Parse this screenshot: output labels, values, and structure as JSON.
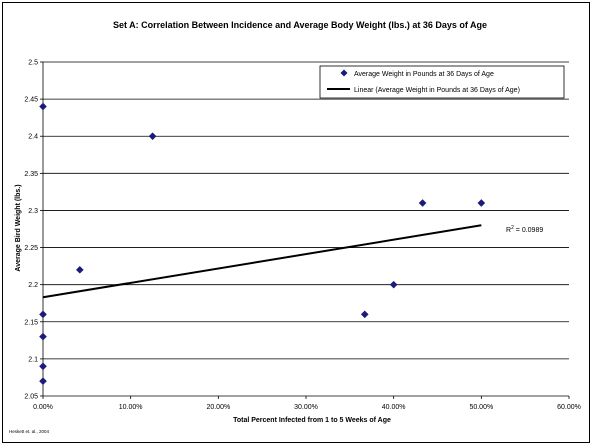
{
  "chart_data": {
    "type": "scatter",
    "title": "Set A:  Correlation Between Incidence and Average Body Weight (lbs.) at 36 Days of Age",
    "xlabel": "Total Percent Infected from 1 to 5 Weeks of Age",
    "ylabel": "Average Bird Weight (lbs.)",
    "xlim": [
      0,
      0.6
    ],
    "ylim": [
      2.05,
      2.5
    ],
    "x_ticks": [
      0,
      0.1,
      0.2,
      0.3,
      0.4,
      0.5,
      0.6
    ],
    "x_tick_labels": [
      "0.00%",
      "10.00%",
      "20.00%",
      "30.00%",
      "40.00%",
      "50.00%",
      "60.00%"
    ],
    "y_ticks": [
      2.05,
      2.1,
      2.15,
      2.2,
      2.25,
      2.3,
      2.35,
      2.4,
      2.45,
      2.5
    ],
    "y_tick_labels": [
      "2.05",
      "2.1",
      "2.15",
      "2.2",
      "2.25",
      "2.3",
      "2.35",
      "2.4",
      "2.45",
      "2.5"
    ],
    "grid": "horizontal",
    "legend_position": "top-right",
    "series": [
      {
        "name": "Average Weight in Pounds at 36 Days of Age",
        "marker": "diamond",
        "color": "#1c1a7a",
        "points": [
          {
            "x": 0.0,
            "y": 2.44
          },
          {
            "x": 0.0,
            "y": 2.16
          },
          {
            "x": 0.0,
            "y": 2.13
          },
          {
            "x": 0.0,
            "y": 2.09
          },
          {
            "x": 0.0,
            "y": 2.07
          },
          {
            "x": 0.042,
            "y": 2.22
          },
          {
            "x": 0.125,
            "y": 2.4
          },
          {
            "x": 0.367,
            "y": 2.16
          },
          {
            "x": 0.4,
            "y": 2.2
          },
          {
            "x": 0.433,
            "y": 2.31
          },
          {
            "x": 0.5,
            "y": 2.31
          }
        ]
      },
      {
        "name": "Linear (Average Weight in Pounds at 36 Days of Age)",
        "type": "trendline",
        "color": "#000000",
        "points": [
          {
            "x": 0.0,
            "y": 2.183
          },
          {
            "x": 0.5,
            "y": 2.28
          }
        ]
      }
    ],
    "annotation": {
      "base": "R",
      "sup": "2",
      "rest": " = 0.0989"
    },
    "footnote": "Heskett et. al., 2004"
  }
}
